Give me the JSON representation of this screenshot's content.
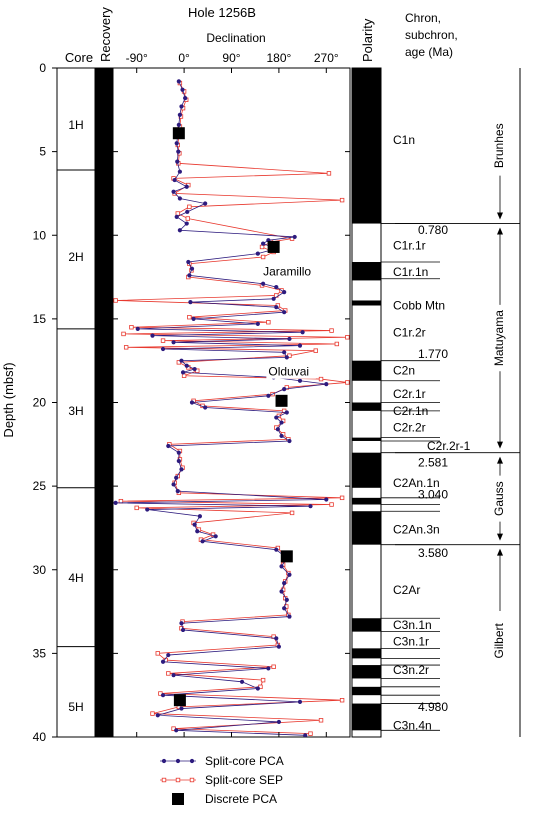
{
  "chart_data": {
    "type": "scatter",
    "title": "Hole 1256B",
    "ylabel": "Depth (mbsf)",
    "xlabel": "Declination",
    "xlim": [
      -135,
      315
    ],
    "ylim": [
      0,
      40
    ],
    "x_ticks": [
      "-90°",
      "0°",
      "90°",
      "180°",
      "270°"
    ],
    "x_tick_values": [
      -90,
      0,
      90,
      180,
      270
    ],
    "y_ticks": [
      0,
      5,
      10,
      15,
      20,
      25,
      30,
      35,
      40
    ],
    "headers": {
      "core": "Core",
      "recovery": "Recovery",
      "polarity": "Polarity",
      "chron": [
        "Chron,",
        "subchron,",
        "age (Ma)"
      ]
    },
    "cores": [
      {
        "label": "1H",
        "top": 0,
        "bottom": 6.1,
        "label_depth": 3.4
      },
      {
        "label": "2H",
        "top": 6.1,
        "bottom": 15.6,
        "label_depth": 11.3
      },
      {
        "label": "3H",
        "top": 15.6,
        "bottom": 25.1,
        "label_depth": 20.5
      },
      {
        "label": "4H",
        "top": 25.1,
        "bottom": 34.6,
        "label_depth": 30.5
      },
      {
        "label": "5H",
        "top": 34.6,
        "bottom": 40,
        "label_depth": 38.2
      }
    ],
    "recovery": [
      [
        0,
        40
      ]
    ],
    "polarity_normal": [
      [
        0,
        9.3
      ],
      [
        11.6,
        12.7
      ],
      [
        13.9,
        14.2
      ],
      [
        17.5,
        18.7
      ],
      [
        20.0,
        20.5
      ],
      [
        22.1,
        22.3
      ],
      [
        23.0,
        25.1
      ],
      [
        25.7,
        26.1
      ],
      [
        26.5,
        28.5
      ],
      [
        32.9,
        33.7
      ],
      [
        34.7,
        35.3
      ],
      [
        35.7,
        36.5
      ],
      [
        37.0,
        37.5
      ],
      [
        38.0,
        39.6
      ]
    ],
    "chron_labels": [
      {
        "text": "C1n",
        "depth": 4.3
      },
      {
        "text": "C1r.1r",
        "depth": 10.6
      },
      {
        "text": "C1r.1n",
        "depth": 12.2
      },
      {
        "text": "Cobb Mtn",
        "depth": 14.2
      },
      {
        "text": "C1r.2r",
        "depth": 15.8
      },
      {
        "text": "C2n",
        "depth": 18.1
      },
      {
        "text": "C2r.1r",
        "depth": 19.5
      },
      {
        "text": "C2r.1n",
        "depth": 20.5
      },
      {
        "text": "C2r.2r",
        "depth": 21.5
      },
      {
        "text": "C2r.2r-1",
        "depth": 22.6
      },
      {
        "text": "C2An.1n",
        "depth": 24.8
      },
      {
        "text": "C2An.3n",
        "depth": 27.6
      },
      {
        "text": "C2Ar",
        "depth": 31.2
      },
      {
        "text": "C3n.1n",
        "depth": 33.3
      },
      {
        "text": "C3n.1r",
        "depth": 34.3
      },
      {
        "text": "C3n.2r",
        "depth": 36.0
      },
      {
        "text": "C3n.4n",
        "depth": 39.3
      }
    ],
    "ages": [
      {
        "text": "0.780",
        "depth": 9.7
      },
      {
        "text": "1.770",
        "depth": 17.1
      },
      {
        "text": "2.581",
        "depth": 23.6
      },
      {
        "text": "3.040",
        "depth": 25.5
      },
      {
        "text": "3.580",
        "depth": 29.0
      },
      {
        "text": "4.980",
        "depth": 38.2
      }
    ],
    "chron_boundaries": [
      9.3,
      11.6,
      12.6,
      17.5,
      18.7,
      20.0,
      20.5,
      22.1,
      22.3,
      23.0,
      25.7,
      26.1,
      26.5,
      28.5,
      32.9,
      33.7,
      34.7,
      35.3,
      35.7,
      36.5,
      37.0,
      37.5,
      38.0,
      39.6
    ],
    "epochs": [
      {
        "text": "Brunhes",
        "top": 0,
        "bottom": 9.3
      },
      {
        "text": "Matuyama",
        "top": 9.3,
        "bottom": 23.0
      },
      {
        "text": "Gauss",
        "top": 23.0,
        "bottom": 28.5
      },
      {
        "text": "Gilbert",
        "top": 28.5,
        "bottom": 40
      }
    ],
    "annotations": [
      {
        "text": "Jaramillo",
        "x": 150,
        "depth": 12.4
      },
      {
        "text": "Olduvai",
        "x": 160,
        "depth": 18.4
      }
    ],
    "discrete_pca": [
      {
        "x": -10,
        "y": 3.9
      },
      {
        "x": 170,
        "y": 10.7
      },
      {
        "x": 185,
        "y": 19.9
      },
      {
        "x": 195,
        "y": 29.2
      },
      {
        "x": -8,
        "y": 37.8
      }
    ],
    "colors": {
      "pca": "#2d1b7e",
      "sep": "#e8392f",
      "discrete": "#000000"
    },
    "series": [
      {
        "name": "Split-core PCA",
        "segments": [
          [
            0.8,
            -10
          ],
          [
            1.3,
            -3
          ],
          [
            1.8,
            2
          ],
          [
            2.3,
            -5
          ],
          [
            2.8,
            -8
          ],
          [
            3.4,
            -10
          ],
          [
            4.0,
            -12
          ],
          [
            4.5,
            -14
          ],
          [
            5.0,
            -11
          ],
          [
            5.6,
            -13
          ],
          [
            6.2,
            -8
          ],
          [
            6.7,
            -18
          ],
          [
            7.1,
            5
          ],
          [
            7.4,
            -20
          ],
          [
            7.8,
            -8
          ],
          [
            8.1,
            40
          ],
          [
            8.6,
            6
          ],
          [
            8.9,
            -14
          ],
          [
            9.3,
            5
          ],
          [
            9.7,
            -8
          ],
          [
            10.1,
            210
          ],
          [
            10.3,
            160
          ],
          [
            10.5,
            150
          ],
          [
            10.8,
            175
          ],
          [
            11.1,
            140
          ],
          [
            11.6,
            8
          ],
          [
            12.0,
            15
          ],
          [
            12.4,
            10
          ],
          [
            12.9,
            150
          ],
          [
            13.1,
            175
          ],
          [
            13.4,
            190
          ],
          [
            13.8,
            170
          ],
          [
            14.0,
            12
          ],
          [
            14.3,
            175
          ],
          [
            14.6,
            190
          ],
          [
            15.0,
            18
          ],
          [
            15.3,
            140
          ],
          [
            15.6,
            -88
          ],
          [
            15.8,
            225
          ],
          [
            16.0,
            -60
          ],
          [
            16.2,
            200
          ],
          [
            16.4,
            -20
          ],
          [
            16.6,
            220
          ],
          [
            16.8,
            -40
          ],
          [
            17.0,
            190
          ],
          [
            17.3,
            195
          ],
          [
            17.5,
            -5
          ],
          [
            17.8,
            5
          ],
          [
            18.0,
            20
          ],
          [
            18.2,
            -2
          ],
          [
            18.5,
            170
          ],
          [
            18.7,
            220
          ],
          [
            18.9,
            270
          ],
          [
            19.2,
            190
          ],
          [
            19.6,
            160
          ],
          [
            20.0,
            15
          ],
          [
            20.3,
            40
          ],
          [
            20.6,
            195
          ],
          [
            20.9,
            175
          ],
          [
            21.2,
            185
          ],
          [
            21.6,
            178
          ],
          [
            22.0,
            185
          ],
          [
            22.3,
            200
          ],
          [
            22.6,
            -30
          ],
          [
            23.0,
            -10
          ],
          [
            23.5,
            -10
          ],
          [
            24.0,
            -5
          ],
          [
            24.5,
            -15
          ],
          [
            24.9,
            -20
          ],
          [
            25.3,
            -12
          ],
          [
            25.8,
            270
          ],
          [
            26.0,
            -130
          ],
          [
            26.2,
            240
          ],
          [
            26.4,
            -70
          ],
          [
            26.8,
            30
          ],
          [
            27.3,
            20
          ],
          [
            27.7,
            25
          ],
          [
            28.0,
            60
          ],
          [
            28.3,
            35
          ],
          [
            28.8,
            175
          ],
          [
            29.3,
            195
          ],
          [
            29.8,
            185
          ],
          [
            30.3,
            200
          ],
          [
            30.8,
            190
          ],
          [
            31.3,
            185
          ],
          [
            31.8,
            195
          ],
          [
            32.3,
            190
          ],
          [
            32.8,
            200
          ],
          [
            33.2,
            -5
          ],
          [
            33.6,
            -2
          ],
          [
            34.1,
            175
          ],
          [
            34.6,
            180
          ],
          [
            35.1,
            -30
          ],
          [
            35.5,
            -40
          ],
          [
            35.9,
            160
          ],
          [
            36.3,
            -20
          ],
          [
            36.7,
            110
          ],
          [
            37.1,
            140
          ],
          [
            37.5,
            -40
          ],
          [
            37.9,
            220
          ],
          [
            38.3,
            -5
          ],
          [
            38.7,
            -50
          ],
          [
            39.1,
            180
          ],
          [
            39.6,
            -15
          ],
          [
            39.9,
            230
          ]
        ]
      },
      {
        "name": "Split-core SEP",
        "segments": [
          [
            0.9,
            -8
          ],
          [
            1.4,
            0
          ],
          [
            1.9,
            4
          ],
          [
            2.4,
            -2
          ],
          [
            2.9,
            -6
          ],
          [
            3.5,
            -8
          ],
          [
            4.1,
            -10
          ],
          [
            4.6,
            -12
          ],
          [
            5.1,
            -9
          ],
          [
            5.7,
            -11
          ],
          [
            6.3,
            275
          ],
          [
            6.6,
            -20
          ],
          [
            7.0,
            8
          ],
          [
            7.5,
            -18
          ],
          [
            7.9,
            300
          ],
          [
            8.3,
            10
          ],
          [
            8.7,
            -12
          ],
          [
            9.0,
            7
          ],
          [
            10.2,
            205
          ],
          [
            10.4,
            165
          ],
          [
            10.7,
            148
          ],
          [
            11.0,
            170
          ],
          [
            11.3,
            150
          ],
          [
            11.7,
            10
          ],
          [
            12.1,
            14
          ],
          [
            12.5,
            8
          ],
          [
            13.0,
            148
          ],
          [
            13.3,
            185
          ],
          [
            13.6,
            175
          ],
          [
            13.9,
            -130
          ],
          [
            14.2,
            178
          ],
          [
            14.5,
            192
          ],
          [
            14.9,
            10
          ],
          [
            15.2,
            160
          ],
          [
            15.5,
            -100
          ],
          [
            15.7,
            280
          ],
          [
            15.9,
            -115
          ],
          [
            16.1,
            310
          ],
          [
            16.3,
            -40
          ],
          [
            16.5,
            290
          ],
          [
            16.7,
            -110
          ],
          [
            16.9,
            250
          ],
          [
            17.2,
            200
          ],
          [
            17.6,
            -10
          ],
          [
            17.9,
            8
          ],
          [
            18.1,
            25
          ],
          [
            18.4,
            0
          ],
          [
            18.6,
            260
          ],
          [
            18.8,
            310
          ],
          [
            19.1,
            195
          ],
          [
            19.5,
            168
          ],
          [
            19.9,
            18
          ],
          [
            20.2,
            35
          ],
          [
            20.5,
            190
          ],
          [
            20.8,
            180
          ],
          [
            21.1,
            188
          ],
          [
            21.5,
            175
          ],
          [
            21.9,
            188
          ],
          [
            22.2,
            198
          ],
          [
            22.5,
            -28
          ],
          [
            22.9,
            -8
          ],
          [
            23.4,
            -8
          ],
          [
            23.9,
            -3
          ],
          [
            24.4,
            -12
          ],
          [
            24.8,
            -18
          ],
          [
            25.4,
            -10
          ],
          [
            25.7,
            300
          ],
          [
            25.9,
            -120
          ],
          [
            26.1,
            280
          ],
          [
            26.3,
            -90
          ],
          [
            26.6,
            205
          ],
          [
            27.2,
            18
          ],
          [
            27.6,
            28
          ],
          [
            27.9,
            55
          ],
          [
            28.2,
            32
          ],
          [
            28.7,
            178
          ],
          [
            29.2,
            192
          ],
          [
            29.7,
            188
          ],
          [
            30.2,
            198
          ],
          [
            30.7,
            192
          ],
          [
            31.2,
            188
          ],
          [
            31.7,
            192
          ],
          [
            32.2,
            194
          ],
          [
            32.7,
            198
          ],
          [
            33.1,
            -3
          ],
          [
            33.5,
            -5
          ],
          [
            34.0,
            170
          ],
          [
            34.5,
            178
          ],
          [
            35.0,
            -50
          ],
          [
            35.4,
            -35
          ],
          [
            35.8,
            170
          ],
          [
            36.2,
            -30
          ],
          [
            36.6,
            150
          ],
          [
            37.0,
            145
          ],
          [
            37.4,
            -45
          ],
          [
            37.8,
            300
          ],
          [
            38.2,
            -10
          ],
          [
            38.6,
            -60
          ],
          [
            39.0,
            260
          ],
          [
            39.5,
            -20
          ],
          [
            39.8,
            240
          ]
        ]
      }
    ],
    "legend": [
      {
        "label": "Split-core PCA",
        "kind": "pca"
      },
      {
        "label": "Split-core SEP",
        "kind": "sep"
      },
      {
        "label": "Discrete PCA",
        "kind": "discrete"
      }
    ],
    "legend_position": "bottom"
  }
}
